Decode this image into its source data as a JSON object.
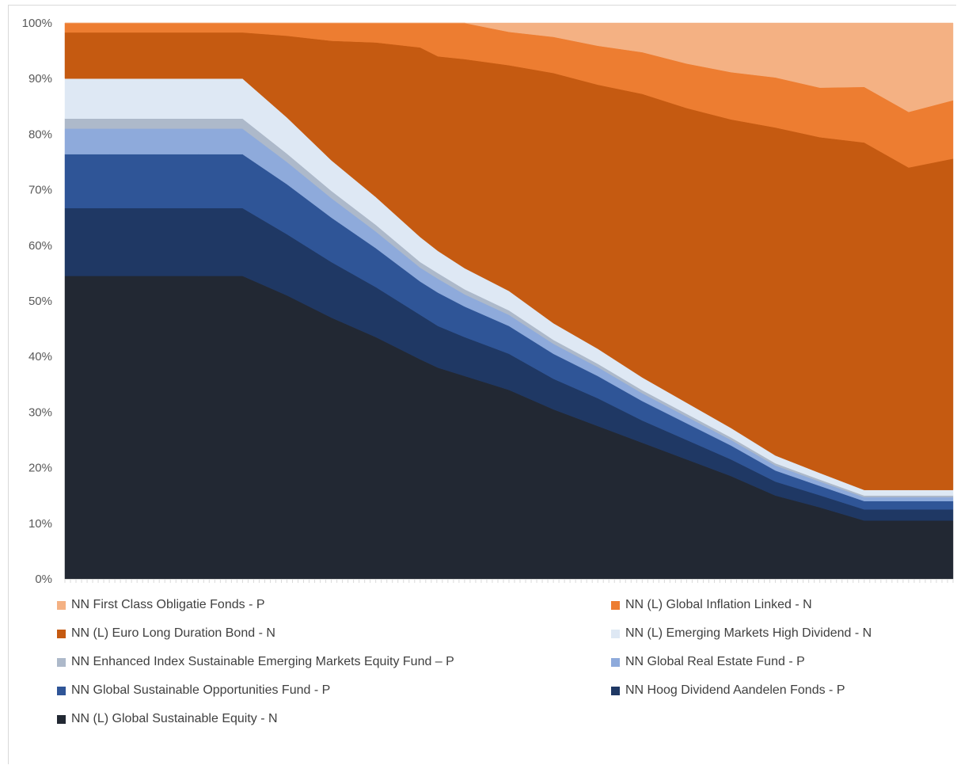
{
  "chart_data": {
    "type": "area",
    "stacked": true,
    "normalized": true,
    "title": "",
    "xlabel": "",
    "ylabel": "",
    "ylim": [
      0,
      100
    ],
    "y_ticks": [
      "0%",
      "10%",
      "20%",
      "30%",
      "40%",
      "50%",
      "60%",
      "70%",
      "80%",
      "90%",
      "100%"
    ],
    "grid": false,
    "legend_position": "bottom",
    "x": [
      0,
      5,
      10,
      15,
      20,
      25,
      30,
      35,
      40,
      42,
      45,
      50,
      55,
      60,
      65,
      70,
      75,
      80,
      85,
      90,
      95,
      100
    ],
    "series": [
      {
        "name": "NN (L) Global Sustainable Equity - N",
        "color": "#222833",
        "values": [
          54.5,
          54.5,
          54.5,
          54.5,
          54.5,
          51.0,
          47.0,
          43.5,
          39.5,
          38.0,
          36.5,
          34.0,
          30.5,
          27.5,
          24.5,
          21.5,
          18.5,
          15.0,
          13.0,
          10.5,
          10.5,
          10.5
        ]
      },
      {
        "name": "NN Hoog Dividend Aandelen Fonds - P",
        "color": "#1f3864",
        "values": [
          12.2,
          12.2,
          12.2,
          12.2,
          12.2,
          11.0,
          10.0,
          9.0,
          8.0,
          7.5,
          7.0,
          6.5,
          5.5,
          5.0,
          4.0,
          3.5,
          3.0,
          2.5,
          2.2,
          2.0,
          2.0,
          2.0
        ]
      },
      {
        "name": "NN Global Sustainable Opportunities Fund - P",
        "color": "#2f5597",
        "values": [
          9.7,
          9.7,
          9.7,
          9.7,
          9.7,
          9.0,
          8.0,
          7.0,
          6.0,
          6.0,
          5.5,
          5.0,
          4.5,
          4.0,
          3.5,
          3.0,
          2.5,
          2.0,
          1.7,
          1.5,
          1.5,
          1.5
        ]
      },
      {
        "name": "NN Global Real Estate Fund - P",
        "color": "#8eaadb",
        "values": [
          4.6,
          4.6,
          4.6,
          4.6,
          4.6,
          4.0,
          3.5,
          3.0,
          2.5,
          2.5,
          2.2,
          2.0,
          1.8,
          1.6,
          1.4,
          1.2,
          1.0,
          0.9,
          0.8,
          0.7,
          0.7,
          0.7
        ]
      },
      {
        "name": "NN Enhanced Index Sustainable Emerging Markets Equity Fund – P",
        "color": "#adb9ca",
        "values": [
          1.8,
          1.8,
          1.8,
          1.8,
          1.8,
          1.5,
          1.3,
          1.2,
          1.0,
          1.0,
          0.9,
          0.8,
          0.7,
          0.6,
          0.55,
          0.5,
          0.45,
          0.4,
          0.35,
          0.3,
          0.3,
          0.3
        ]
      },
      {
        "name": "NN (L) Emerging Markets High Dividend - N",
        "color": "#dee8f4",
        "values": [
          7.2,
          7.2,
          7.2,
          7.2,
          7.2,
          6.5,
          5.5,
          5.0,
          4.5,
          4.0,
          3.8,
          3.5,
          3.0,
          2.7,
          2.3,
          2.0,
          1.7,
          1.4,
          1.2,
          1.0,
          1.0,
          1.0
        ]
      },
      {
        "name": "NN (L) Euro Long Duration Bond - N",
        "color": "#c55a11",
        "values": [
          8.3,
          8.3,
          8.3,
          8.3,
          8.3,
          14.7,
          21.5,
          27.8,
          34.1,
          35.0,
          37.6,
          40.6,
          45.0,
          47.5,
          51.0,
          53.0,
          55.5,
          59.0,
          61.0,
          62.5,
          58.0,
          59.6
        ]
      },
      {
        "name": "NN (L) Global Inflation Linked - N",
        "color": "#ed7d31",
        "values": [
          1.7,
          1.7,
          1.7,
          1.7,
          1.7,
          2.3,
          3.2,
          3.5,
          4.4,
          6.0,
          6.5,
          6.0,
          6.5,
          7.0,
          7.5,
          8.0,
          8.5,
          9.0,
          9.0,
          10.0,
          10.0,
          10.5
        ]
      },
      {
        "name": "NN First Class Obligatie Fonds - P",
        "color": "#f4b183",
        "values": [
          0,
          0,
          0,
          0,
          0,
          0,
          0,
          0,
          0,
          0,
          0,
          1.6,
          2.5,
          4.1,
          5.25,
          7.3,
          8.85,
          9.8,
          11.75,
          11.5,
          16.0,
          13.9
        ]
      }
    ]
  },
  "legend": {
    "items": [
      {
        "label": "NN First Class Obligatie Fonds - P",
        "color": "#f4b183"
      },
      {
        "label": "NN (L) Global Inflation Linked - N",
        "color": "#ed7d31"
      },
      {
        "label": "NN (L) Euro Long Duration Bond - N",
        "color": "#c55a11"
      },
      {
        "label": "NN (L) Emerging Markets High Dividend - N",
        "color": "#dee8f4"
      },
      {
        "label": "NN Enhanced Index Sustainable Emerging Markets Equity Fund – P",
        "color": "#adb9ca"
      },
      {
        "label": "NN Global Real Estate Fund - P",
        "color": "#8eaadb"
      },
      {
        "label": "NN Global Sustainable Opportunities Fund - P",
        "color": "#2f5597"
      },
      {
        "label": "NN Hoog Dividend Aandelen Fonds - P",
        "color": "#1f3864"
      },
      {
        "label": "NN (L) Global Sustainable Equity - N",
        "color": "#222833"
      }
    ]
  }
}
